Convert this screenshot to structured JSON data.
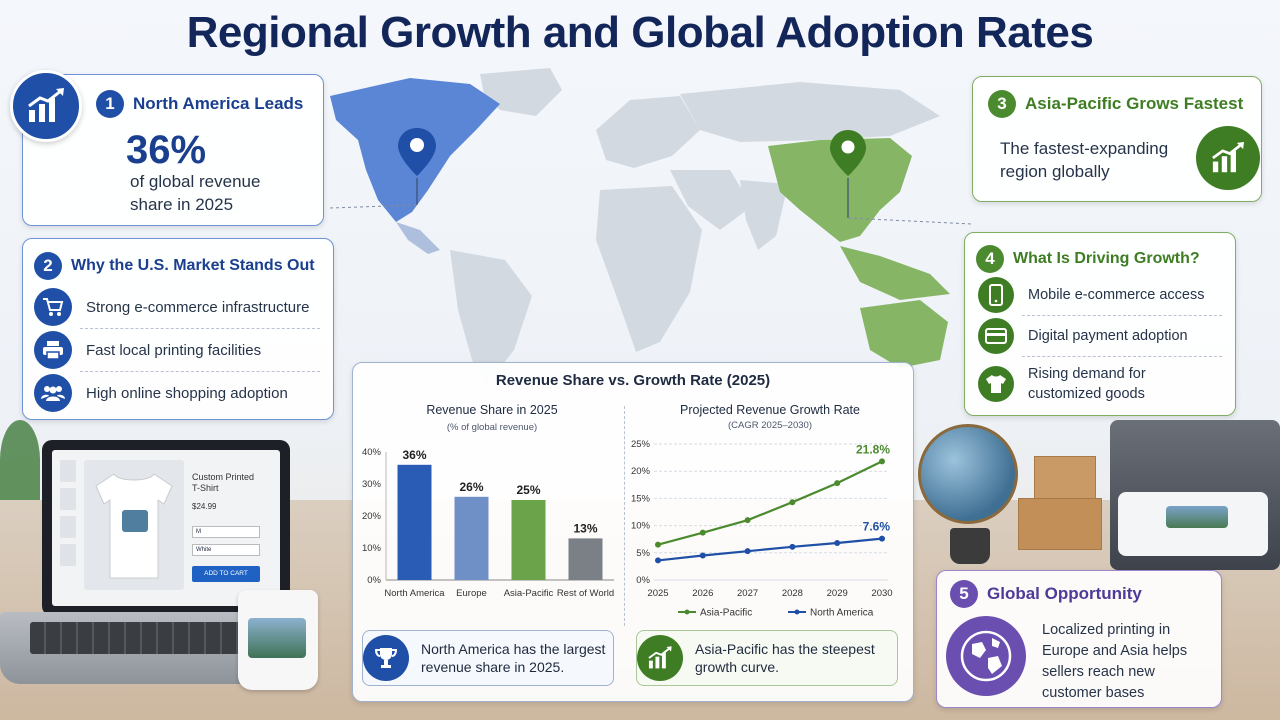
{
  "title": "Regional Growth and Global Adoption Rates",
  "card1": {
    "num": "1",
    "heading": "North America Leads",
    "big": "36%",
    "line1": "of global revenue",
    "line2": "share in 2025"
  },
  "card2": {
    "num": "2",
    "heading": "Why the U.S. Market Stands Out",
    "items": [
      {
        "icon": "shopping-cart-icon",
        "label": "Strong e-commerce infrastructure"
      },
      {
        "icon": "printer-icon",
        "label": "Fast local printing facilities"
      },
      {
        "icon": "people-icon",
        "label": "High online shopping adoption"
      }
    ]
  },
  "card3": {
    "num": "3",
    "heading": "Asia-Pacific Grows Fastest",
    "line1": "The fastest-expanding",
    "line2": "region globally"
  },
  "card4": {
    "num": "4",
    "heading": "What Is Driving Growth?",
    "items": [
      {
        "icon": "mobile-phone-icon",
        "lines": [
          "Mobile e-commerce access"
        ]
      },
      {
        "icon": "credit-card-icon",
        "lines": [
          "Digital payment adoption"
        ]
      },
      {
        "icon": "t-shirt-icon",
        "lines": [
          "Rising demand for",
          "customized goods"
        ]
      }
    ]
  },
  "card5": {
    "num": "5",
    "heading": "Global Opportunity",
    "lines": [
      "Localized printing in",
      "Europe and Asia helps",
      "sellers reach new",
      "customer bases"
    ]
  },
  "laptop": {
    "product": "Custom Printed",
    "product2": "T-Shirt",
    "price": "$24.99",
    "size_value": "M",
    "color_value": "White",
    "cta": "ADD TO CART"
  },
  "colors": {
    "navy": "#13265a",
    "blue": "#1f4fa6",
    "green": "#4c8a2f",
    "purple": "#6a4fb0"
  },
  "chart_panel_title": "Revenue Share vs. Growth Rate (2025)",
  "chart_data": [
    {
      "type": "bar",
      "title": "Revenue Share in 2025",
      "subtitle": "(% of global revenue)",
      "categories": [
        "North America",
        "Europe",
        "Asia-Pacific",
        "Rest of World"
      ],
      "values": [
        36,
        26,
        25,
        13
      ],
      "value_labels": [
        "36%",
        "26%",
        "25%",
        "13%"
      ],
      "bar_colors": [
        "#2a5bb5",
        "#6f8fc7",
        "#6aa34a",
        "#7b7f86"
      ],
      "yticks": [
        "0%",
        "10%",
        "20%",
        "30%",
        "40%"
      ],
      "ylim": [
        0,
        40
      ],
      "grid": false
    },
    {
      "type": "line",
      "title": "Projected Revenue Growth Rate",
      "subtitle": "(CAGR 2025–2030)",
      "x": [
        "2025",
        "2026",
        "2027",
        "2028",
        "2029",
        "2030"
      ],
      "yticks": [
        "0%",
        "5%",
        "10%",
        "15%",
        "20%",
        "25%"
      ],
      "ylim": [
        0,
        25
      ],
      "series": [
        {
          "name": "Asia-Pacific",
          "color": "#4c8a2f",
          "values": [
            6.5,
            8.7,
            11,
            14.3,
            17.8,
            21.8
          ],
          "end_label": "21.8%"
        },
        {
          "name": "North America",
          "color": "#1f4fa6",
          "values": [
            3.6,
            4.5,
            5.3,
            6.1,
            6.8,
            7.6
          ],
          "end_label": "7.6%"
        }
      ],
      "legend": "bottom",
      "grid": true
    }
  ],
  "callouts": {
    "left": {
      "icon": "trophy-icon",
      "text1": "North America has the largest",
      "text2": "revenue share in 2025."
    },
    "right": {
      "icon": "growth-chart-icon",
      "text1": "Asia-Pacific has the steepest",
      "text2": "growth curve."
    }
  }
}
